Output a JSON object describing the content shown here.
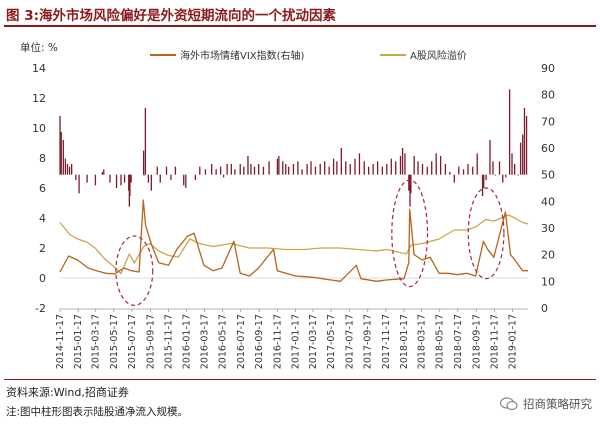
{
  "figure": {
    "title": "图 3:海外市场风险偏好是外资短期流向的一个扰动因素",
    "source": "资料来源:Wind,招商证券",
    "note": "注:图中柱形图表示陆股通净流入规模。",
    "watermark": "招商策略研究"
  },
  "chart_data": {
    "type": "bar+line",
    "unit_label": "单位: %",
    "colors": {
      "bar": "#7a1c2c",
      "vix": "#b5651d",
      "premium": "#c9a84a",
      "ellipse": "#a3283a"
    },
    "y_left": {
      "min": -2,
      "max": 14,
      "ticks": [
        -2,
        0,
        2,
        4,
        6,
        8,
        10,
        12,
        14
      ]
    },
    "y_right": {
      "min": 0,
      "max": 90,
      "ticks": [
        0,
        10,
        20,
        30,
        40,
        50,
        60,
        70,
        80,
        90
      ]
    },
    "x_ticks": [
      "2014-11-17",
      "2015-01-17",
      "2015-03-17",
      "2015-05-17",
      "2015-07-17",
      "2015-09-17",
      "2015-11-17",
      "2016-01-17",
      "2016-03-17",
      "2016-05-17",
      "2016-07-17",
      "2016-09-17",
      "2016-11-17",
      "2017-01-17",
      "2017-03-17",
      "2017-05-17",
      "2017-07-17",
      "2017-09-17",
      "2017-11-17",
      "2018-01-17",
      "2018-03-17",
      "2018-05-17",
      "2018-07-17",
      "2018-09-17",
      "2018-11-17",
      "2019-01-17"
    ],
    "x_range": [
      "2014-11-17",
      "2019-03-10"
    ],
    "series": [
      {
        "name": "海外市场情绪VIX指数(右轴)",
        "axis": "right",
        "kind": "line",
        "points": [
          [
            "2014-11-17",
            13.5
          ],
          [
            "2014-12-16",
            19.5
          ],
          [
            "2015-01-15",
            18
          ],
          [
            "2015-02-20",
            15
          ],
          [
            "2015-03-20",
            14
          ],
          [
            "2015-04-20",
            13
          ],
          [
            "2015-05-20",
            12.8
          ],
          [
            "2015-06-20",
            15
          ],
          [
            "2015-07-15",
            14
          ],
          [
            "2015-08-10",
            13.5
          ],
          [
            "2015-08-24",
            40.5
          ],
          [
            "2015-09-01",
            31
          ],
          [
            "2015-09-20",
            24
          ],
          [
            "2015-10-15",
            17
          ],
          [
            "2015-11-17",
            16
          ],
          [
            "2015-12-15",
            22
          ],
          [
            "2016-01-20",
            27
          ],
          [
            "2016-02-11",
            28
          ],
          [
            "2016-03-15",
            16
          ],
          [
            "2016-04-15",
            14
          ],
          [
            "2016-05-15",
            15
          ],
          [
            "2016-06-24",
            25
          ],
          [
            "2016-07-15",
            13
          ],
          [
            "2016-08-15",
            12
          ],
          [
            "2016-09-15",
            15
          ],
          [
            "2016-11-04",
            22
          ],
          [
            "2016-11-17",
            14
          ],
          [
            "2017-01-17",
            12
          ],
          [
            "2017-03-17",
            11.5
          ],
          [
            "2017-05-17",
            10.5
          ],
          [
            "2017-06-17",
            10
          ],
          [
            "2017-08-10",
            16
          ],
          [
            "2017-08-25",
            11
          ],
          [
            "2017-10-17",
            10
          ],
          [
            "2017-11-17",
            10.5
          ],
          [
            "2018-01-17",
            11
          ],
          [
            "2018-02-02",
            17
          ],
          [
            "2018-02-05",
            37
          ],
          [
            "2018-02-20",
            20
          ],
          [
            "2018-03-20",
            18
          ],
          [
            "2018-04-15",
            19
          ],
          [
            "2018-05-15",
            13
          ],
          [
            "2018-06-15",
            13
          ],
          [
            "2018-07-15",
            12.5
          ],
          [
            "2018-08-15",
            13
          ],
          [
            "2018-09-15",
            12
          ],
          [
            "2018-10-11",
            25
          ],
          [
            "2018-10-25",
            22
          ],
          [
            "2018-11-15",
            19
          ],
          [
            "2018-12-24",
            36
          ],
          [
            "2019-01-10",
            20
          ],
          [
            "2019-01-25",
            18
          ],
          [
            "2019-02-20",
            14
          ],
          [
            "2019-03-10",
            14
          ]
        ]
      },
      {
        "name": "A股风险溢价",
        "axis": "left",
        "kind": "line",
        "points": [
          [
            "2014-11-17",
            3.7
          ],
          [
            "2014-12-20",
            2.9
          ],
          [
            "2015-01-15",
            2.6
          ],
          [
            "2015-02-15",
            2.4
          ],
          [
            "2015-03-15",
            2.0
          ],
          [
            "2015-04-15",
            1.3
          ],
          [
            "2015-05-15",
            0.8
          ],
          [
            "2015-06-10",
            0.3
          ],
          [
            "2015-07-08",
            1.6
          ],
          [
            "2015-07-25",
            1.0
          ],
          [
            "2015-08-26",
            2.1
          ],
          [
            "2015-09-15",
            2.3
          ],
          [
            "2015-10-15",
            1.8
          ],
          [
            "2015-11-17",
            1.5
          ],
          [
            "2015-12-20",
            1.4
          ],
          [
            "2016-01-28",
            2.6
          ],
          [
            "2016-02-28",
            2.3
          ],
          [
            "2016-04-15",
            2.1
          ],
          [
            "2016-06-15",
            2.3
          ],
          [
            "2016-08-15",
            2.0
          ],
          [
            "2016-10-15",
            2.0
          ],
          [
            "2016-12-15",
            1.9
          ],
          [
            "2017-02-15",
            1.9
          ],
          [
            "2017-04-15",
            2.0
          ],
          [
            "2017-06-15",
            2.0
          ],
          [
            "2017-08-15",
            1.9
          ],
          [
            "2017-10-15",
            1.8
          ],
          [
            "2017-11-20",
            1.9
          ],
          [
            "2018-01-25",
            1.6
          ],
          [
            "2018-02-10",
            2.2
          ],
          [
            "2018-03-20",
            2.3
          ],
          [
            "2018-05-15",
            2.6
          ],
          [
            "2018-07-05",
            3.2
          ],
          [
            "2018-08-15",
            3.2
          ],
          [
            "2018-09-15",
            3.4
          ],
          [
            "2018-10-19",
            3.9
          ],
          [
            "2018-11-15",
            3.8
          ],
          [
            "2019-01-03",
            4.2
          ],
          [
            "2019-01-25",
            4.0
          ],
          [
            "2019-02-20",
            3.7
          ],
          [
            "2019-03-10",
            3.6
          ]
        ]
      },
      {
        "name": "陆股通净流入规模",
        "axis": "right",
        "kind": "bar",
        "baseline": 50,
        "points": [
          [
            "2014-11-17",
            72
          ],
          [
            "2014-11-21",
            66
          ],
          [
            "2014-11-28",
            63
          ],
          [
            "2014-12-05",
            56
          ],
          [
            "2014-12-12",
            54
          ],
          [
            "2014-12-19",
            53
          ],
          [
            "2014-12-26",
            54
          ],
          [
            "2015-01-09",
            48
          ],
          [
            "2015-01-20",
            43
          ],
          [
            "2015-02-16",
            47
          ],
          [
            "2015-03-16",
            46
          ],
          [
            "2015-04-08",
            51
          ],
          [
            "2015-04-13",
            52
          ],
          [
            "2015-05-04",
            47
          ],
          [
            "2015-05-26",
            45
          ],
          [
            "2015-06-10",
            46
          ],
          [
            "2015-06-22",
            47
          ],
          [
            "2015-07-06",
            44
          ],
          [
            "2015-07-08",
            38
          ],
          [
            "2015-07-10",
            42
          ],
          [
            "2015-07-14",
            47
          ],
          [
            "2015-08-25",
            59
          ],
          [
            "2015-08-27",
            50
          ],
          [
            "2015-08-31",
            75
          ],
          [
            "2015-09-10",
            47
          ],
          [
            "2015-09-20",
            44
          ],
          [
            "2015-10-10",
            53
          ],
          [
            "2015-10-20",
            47
          ],
          [
            "2015-11-10",
            53
          ],
          [
            "2015-11-25",
            48
          ],
          [
            "2015-12-10",
            53
          ],
          [
            "2016-01-07",
            46
          ],
          [
            "2016-01-14",
            45
          ],
          [
            "2016-02-15",
            48
          ],
          [
            "2016-03-01",
            53
          ],
          [
            "2016-03-20",
            52
          ],
          [
            "2016-04-10",
            54
          ],
          [
            "2016-04-25",
            52
          ],
          [
            "2016-05-10",
            53
          ],
          [
            "2016-05-20",
            49
          ],
          [
            "2016-06-01",
            54
          ],
          [
            "2016-06-15",
            54
          ],
          [
            "2016-06-27",
            52
          ],
          [
            "2016-07-15",
            54
          ],
          [
            "2016-07-27",
            53
          ],
          [
            "2016-08-10",
            57
          ],
          [
            "2016-08-20",
            54
          ],
          [
            "2016-09-01",
            53
          ],
          [
            "2016-09-15",
            54
          ],
          [
            "2016-10-01",
            53
          ],
          [
            "2016-10-20",
            55
          ],
          [
            "2016-11-17",
            56
          ],
          [
            "2016-11-22",
            57
          ],
          [
            "2016-12-05",
            55
          ],
          [
            "2016-12-15",
            54
          ],
          [
            "2016-12-25",
            53
          ],
          [
            "2017-01-10",
            54
          ],
          [
            "2017-01-25",
            55
          ],
          [
            "2017-02-08",
            52
          ],
          [
            "2017-02-25",
            54
          ],
          [
            "2017-03-10",
            55
          ],
          [
            "2017-03-25",
            53
          ],
          [
            "2017-04-10",
            54
          ],
          [
            "2017-04-25",
            55
          ],
          [
            "2017-05-10",
            53
          ],
          [
            "2017-05-25",
            56
          ],
          [
            "2017-06-05",
            55
          ],
          [
            "2017-06-20",
            60
          ],
          [
            "2017-07-05",
            55
          ],
          [
            "2017-07-20",
            54
          ],
          [
            "2017-08-05",
            56
          ],
          [
            "2017-08-20",
            58
          ],
          [
            "2017-09-05",
            55
          ],
          [
            "2017-09-20",
            53
          ],
          [
            "2017-10-05",
            54
          ],
          [
            "2017-10-20",
            55
          ],
          [
            "2017-11-05",
            53
          ],
          [
            "2017-11-20",
            54
          ],
          [
            "2017-12-05",
            56
          ],
          [
            "2017-12-20",
            55
          ],
          [
            "2018-01-05",
            57
          ],
          [
            "2018-01-12",
            60
          ],
          [
            "2018-01-20",
            58
          ],
          [
            "2018-02-02",
            44
          ],
          [
            "2018-02-06",
            38
          ],
          [
            "2018-02-09",
            43
          ],
          [
            "2018-02-20",
            57
          ],
          [
            "2018-03-05",
            55
          ],
          [
            "2018-03-20",
            54
          ],
          [
            "2018-04-05",
            53
          ],
          [
            "2018-04-20",
            55
          ],
          [
            "2018-05-05",
            58
          ],
          [
            "2018-05-20",
            57
          ],
          [
            "2018-06-05",
            54
          ],
          [
            "2018-06-20",
            51
          ],
          [
            "2018-07-05",
            47
          ],
          [
            "2018-07-20",
            53
          ],
          [
            "2018-08-05",
            52
          ],
          [
            "2018-08-20",
            54
          ],
          [
            "2018-09-05",
            53
          ],
          [
            "2018-09-20",
            58
          ],
          [
            "2018-10-08",
            42
          ],
          [
            "2018-10-12",
            45
          ],
          [
            "2018-10-20",
            48
          ],
          [
            "2018-11-02",
            63
          ],
          [
            "2018-11-12",
            55
          ],
          [
            "2018-11-20",
            50
          ],
          [
            "2018-12-04",
            55
          ],
          [
            "2018-12-15",
            47
          ],
          [
            "2018-12-25",
            49
          ],
          [
            "2019-01-07",
            82
          ],
          [
            "2019-01-15",
            58
          ],
          [
            "2019-01-24",
            54
          ],
          [
            "2019-02-05",
            50
          ],
          [
            "2019-02-13",
            62
          ],
          [
            "2019-02-20",
            65
          ],
          [
            "2019-02-26",
            75
          ],
          [
            "2019-03-05",
            72
          ]
        ]
      }
    ],
    "annotations": [
      {
        "type": "ellipse",
        "center": [
          "2015-07-25",
          14
        ],
        "x_radius_days": 62,
        "y_radius": 13
      },
      {
        "type": "ellipse",
        "center": [
          "2018-02-05",
          28
        ],
        "x_radius_days": 60,
        "y_radius": 20
      },
      {
        "type": "ellipse",
        "center": [
          "2018-10-20",
          28
        ],
        "x_radius_days": 60,
        "y_radius": 17
      }
    ]
  }
}
